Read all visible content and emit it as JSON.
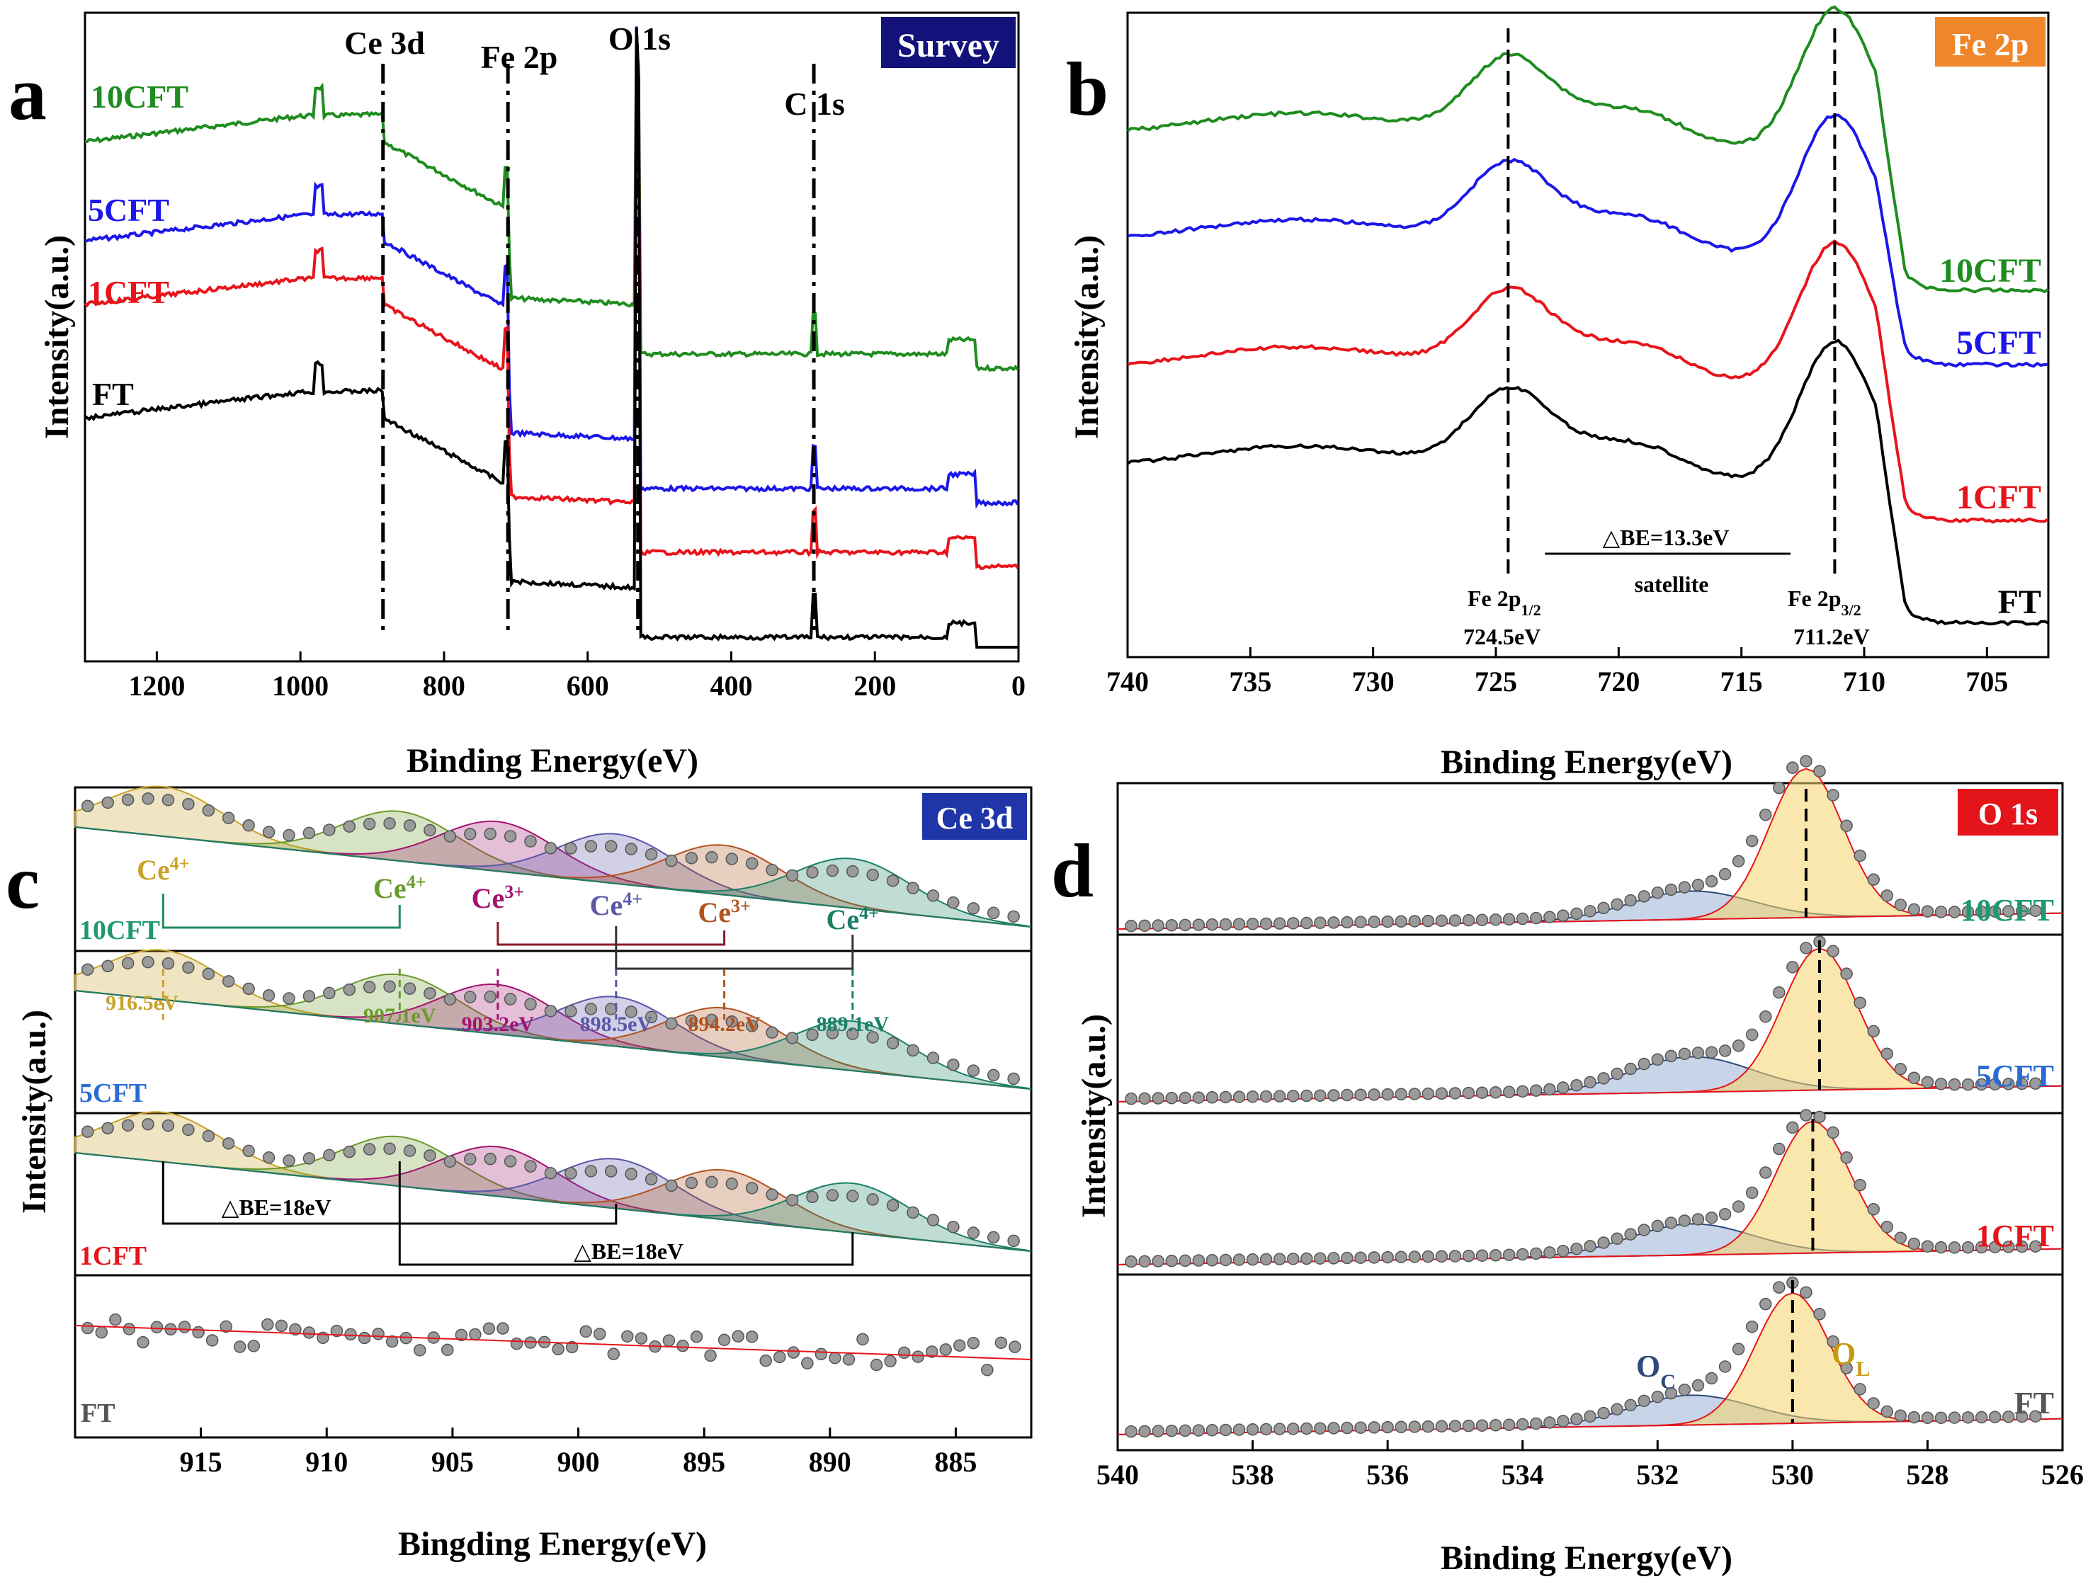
{
  "figure": {
    "description_panels": [
      "a",
      "b",
      "c",
      "d"
    ],
    "colors": {
      "FT": "#000000",
      "1CFT": "#e8141b",
      "5CFT": "#1c17e8",
      "10CFT": "#1f8c1f",
      "tag_survey": "#12127a",
      "tag_fe": "#f0862a",
      "tag_ce": "#1f35a8",
      "tag_o": "#e4141b"
    }
  },
  "chart_data": [
    {
      "panel": "a",
      "type": "line",
      "tag": "Survey",
      "xlabel": "Binding Energy(eV)",
      "ylabel": "Intensity(a.u.)",
      "xlim": [
        1300,
        0
      ],
      "xticks": [
        1200,
        1000,
        800,
        600,
        400,
        200,
        0
      ],
      "series": [
        {
          "name": "10CFT",
          "color": "#1f8c1f",
          "baseline": 0.86,
          "offset_labels": true
        },
        {
          "name": "5CFT",
          "color": "#1c17e8",
          "baseline": 0.6
        },
        {
          "name": "1CFT",
          "color": "#e8141b",
          "baseline": 0.48
        },
        {
          "name": "FT",
          "color": "#000000",
          "baseline": 0.34
        }
      ],
      "peak_labels": [
        {
          "label": "Ce 3d",
          "x": 885
        },
        {
          "label": "Fe 2p",
          "x": 711
        },
        {
          "label": "O 1s",
          "x": 530
        },
        {
          "label": "C 1s",
          "x": 285
        }
      ],
      "series_labels": [
        "10CFT",
        "5CFT",
        "1CFT",
        "FT"
      ]
    },
    {
      "panel": "b",
      "type": "line",
      "tag": "Fe 2p",
      "xlabel": "Binding Energy(eV)",
      "ylabel": "Intensity(a.u.)",
      "xlim": [
        740,
        702.5
      ],
      "xticks": [
        740,
        735,
        730,
        725,
        720,
        715,
        710,
        705
      ],
      "series_labels": [
        "10CFT",
        "5CFT",
        "1CFT",
        "FT"
      ],
      "annotations": {
        "fe_2p12": "Fe 2p",
        "fe_2p12_sub": "1/2",
        "fe_2p12_value": "724.5eV",
        "fe_2p32": "Fe 2p",
        "fe_2p32_sub": "3/2",
        "fe_2p32_value": "711.2eV",
        "delta": "△BE=13.3eV",
        "satellite": "satellite"
      },
      "peaks": [
        724.5,
        711.2
      ]
    },
    {
      "panel": "c",
      "type": "line",
      "tag": "Ce 3d",
      "xlabel": "Bingding Energy(eV)",
      "ylabel": "Intensity(a.u.)",
      "xlim": [
        920,
        882
      ],
      "xticks": [
        915,
        910,
        905,
        900,
        895,
        890,
        885
      ],
      "series_labels": [
        "10CFT",
        "5CFT",
        "1CFT",
        "FT"
      ],
      "components": [
        {
          "center": 916.5,
          "label": "Ce",
          "sup": "4+",
          "value": "916.5eV",
          "color": "#c9a227"
        },
        {
          "center": 907.1,
          "label": "Ce",
          "sup": "4+",
          "value": "907.1eV",
          "color": "#6a9a2c"
        },
        {
          "center": 903.2,
          "label": "Ce",
          "sup": "3+",
          "value": "903.2eV",
          "color": "#a3146e"
        },
        {
          "center": 898.5,
          "label": "Ce",
          "sup": "4+",
          "value": "898.5eV",
          "color": "#5b56a8"
        },
        {
          "center": 894.2,
          "label": "Ce",
          "sup": "3+",
          "value": "894.2eV",
          "color": "#b0531e"
        },
        {
          "center": 889.1,
          "label": "Ce",
          "sup": "4+",
          "value": "889.1eV",
          "color": "#1a8067"
        }
      ],
      "delta_labels": [
        "△BE=18eV",
        "△BE=18eV"
      ]
    },
    {
      "panel": "d",
      "type": "line",
      "tag": "O 1s",
      "xlabel": "Binding Energy(eV)",
      "ylabel": "Intensity(a.u.)",
      "xlim": [
        540,
        526
      ],
      "xticks": [
        540,
        538,
        536,
        534,
        532,
        530,
        528,
        526
      ],
      "series_labels": [
        "10CFT",
        "5CFT",
        "1CFT",
        "FT"
      ],
      "components": [
        {
          "label": "O",
          "sub": "C",
          "center": 531.3
        },
        {
          "label": "O",
          "sub": "L",
          "center": 529.9
        }
      ]
    }
  ]
}
